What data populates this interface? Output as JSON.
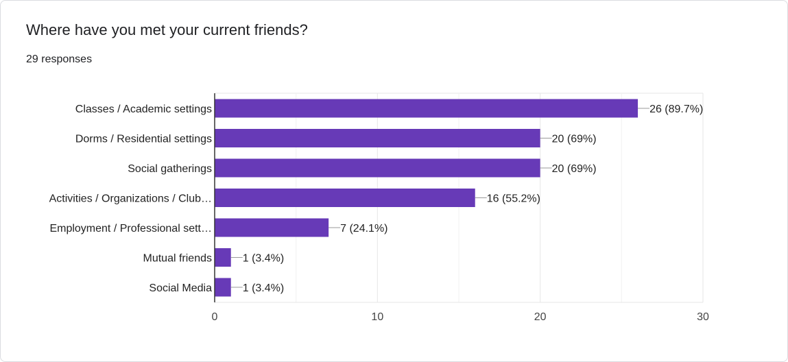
{
  "header": {
    "title": "Where have you met your current friends?",
    "responses": "29 responses"
  },
  "colors": {
    "bar": "#673ab7",
    "grid": "#e6e6e6",
    "axis": "#333333"
  },
  "chart_data": {
    "type": "bar",
    "orientation": "horizontal",
    "categories": [
      "Classes / Academic settings",
      "Dorms / Residential settings",
      "Social gatherings",
      "Activities / Organizations / Club…",
      "Employment / Professional sett…",
      "Mutual friends",
      "Social Media"
    ],
    "values": [
      26,
      20,
      20,
      16,
      7,
      1,
      1
    ],
    "value_labels": [
      "26 (89.7%)",
      "20 (69%)",
      "20 (69%)",
      "16 (55.2%)",
      "7 (24.1%)",
      "1 (3.4%)",
      "1 (3.4%)"
    ],
    "xlim": [
      0,
      30
    ],
    "xticks": [
      0,
      10,
      20,
      30
    ],
    "minor_xticks": [
      5,
      15,
      25
    ],
    "grid": true,
    "legend": "none"
  }
}
